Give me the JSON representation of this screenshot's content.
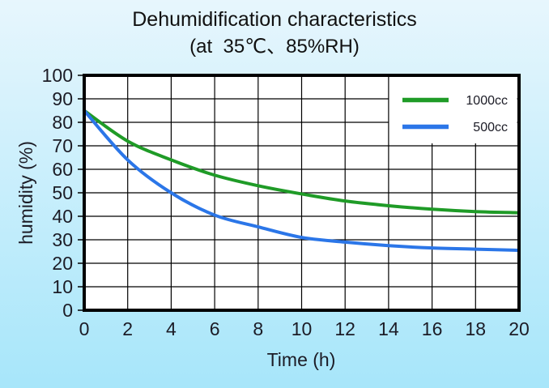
{
  "colors": {
    "background_top": "#e7f6fd",
    "background_bottom": "#a7e6fa",
    "plot_background": "#ffffff",
    "grid": "#000000",
    "border": "#000000",
    "text": "#1c1c26",
    "legend_background": "#ffffff"
  },
  "chart_data": {
    "type": "line",
    "title": "Dehumidification characteristics",
    "subtitle": "(at  35℃、85%RH)",
    "xlabel": "Time (h)",
    "ylabel": "humidity (%)",
    "xlim": [
      0,
      20
    ],
    "ylim": [
      0,
      100
    ],
    "xticks": [
      0,
      2,
      4,
      6,
      8,
      10,
      12,
      14,
      16,
      18,
      20
    ],
    "yticks": [
      100,
      90,
      80,
      70,
      60,
      50,
      40,
      30,
      20,
      10,
      0
    ],
    "grid": true,
    "legend_position": "top-right",
    "x": [
      0,
      2,
      4,
      6,
      8,
      10,
      12,
      14,
      16,
      18,
      20
    ],
    "series": [
      {
        "name": "1000cc",
        "color": "#1f9b27",
        "values": [
          85,
          72,
          64,
          57.5,
          53,
          49.5,
          46.5,
          44.5,
          43,
          42,
          41.5
        ]
      },
      {
        "name": "500cc",
        "color": "#2b76e8",
        "values": [
          85,
          64,
          50,
          40.5,
          35.5,
          31,
          29,
          27.5,
          26.5,
          26,
          25.5
        ]
      }
    ]
  }
}
